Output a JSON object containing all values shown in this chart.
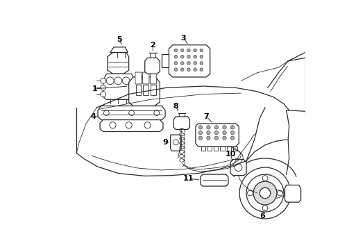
{
  "background_color": "#ffffff",
  "line_color": "#2a2a2a",
  "text_color": "#000000",
  "fig_width": 4.9,
  "fig_height": 3.6,
  "dpi": 100
}
